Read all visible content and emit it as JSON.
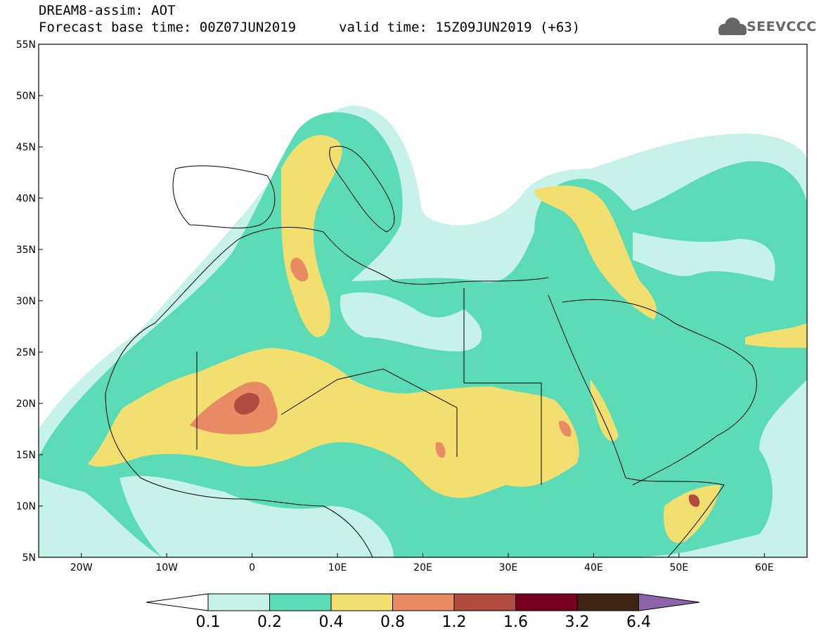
{
  "header": {
    "title_line1": "DREAM8-assim: AOT",
    "title_line2": "Forecast base time: 00Z07JUN2019",
    "valid_time": "valid time: 15Z09JUN2019 (+63)",
    "logo_text": "SEEVCCC",
    "logo_icon": "cloud-icon"
  },
  "map": {
    "lon_range": [
      -25,
      65
    ],
    "lat_range": [
      5,
      55
    ],
    "lat_ticks": [
      "55N",
      "50N",
      "45N",
      "40N",
      "35N",
      "30N",
      "25N",
      "20N",
      "15N",
      "10N",
      "5N"
    ],
    "lon_ticks": [
      "20W",
      "10W",
      "0",
      "10E",
      "20E",
      "30E",
      "40E",
      "50E",
      "60E"
    ]
  },
  "colors": {
    "c01": "#c7f2ea",
    "c02": "#5bdcb6",
    "c04": "#f2df70",
    "c08": "#e88a64",
    "c12": "#b04c3e",
    "c16": "#7a0020",
    "c32": "#3d2414",
    "c64": "#8e64ad",
    "land": "#ffffff",
    "border": "#000000"
  },
  "legend": {
    "labels": [
      "0.1",
      "0.2",
      "0.4",
      "0.8",
      "1.2",
      "1.6",
      "3.2",
      "6.4"
    ]
  }
}
